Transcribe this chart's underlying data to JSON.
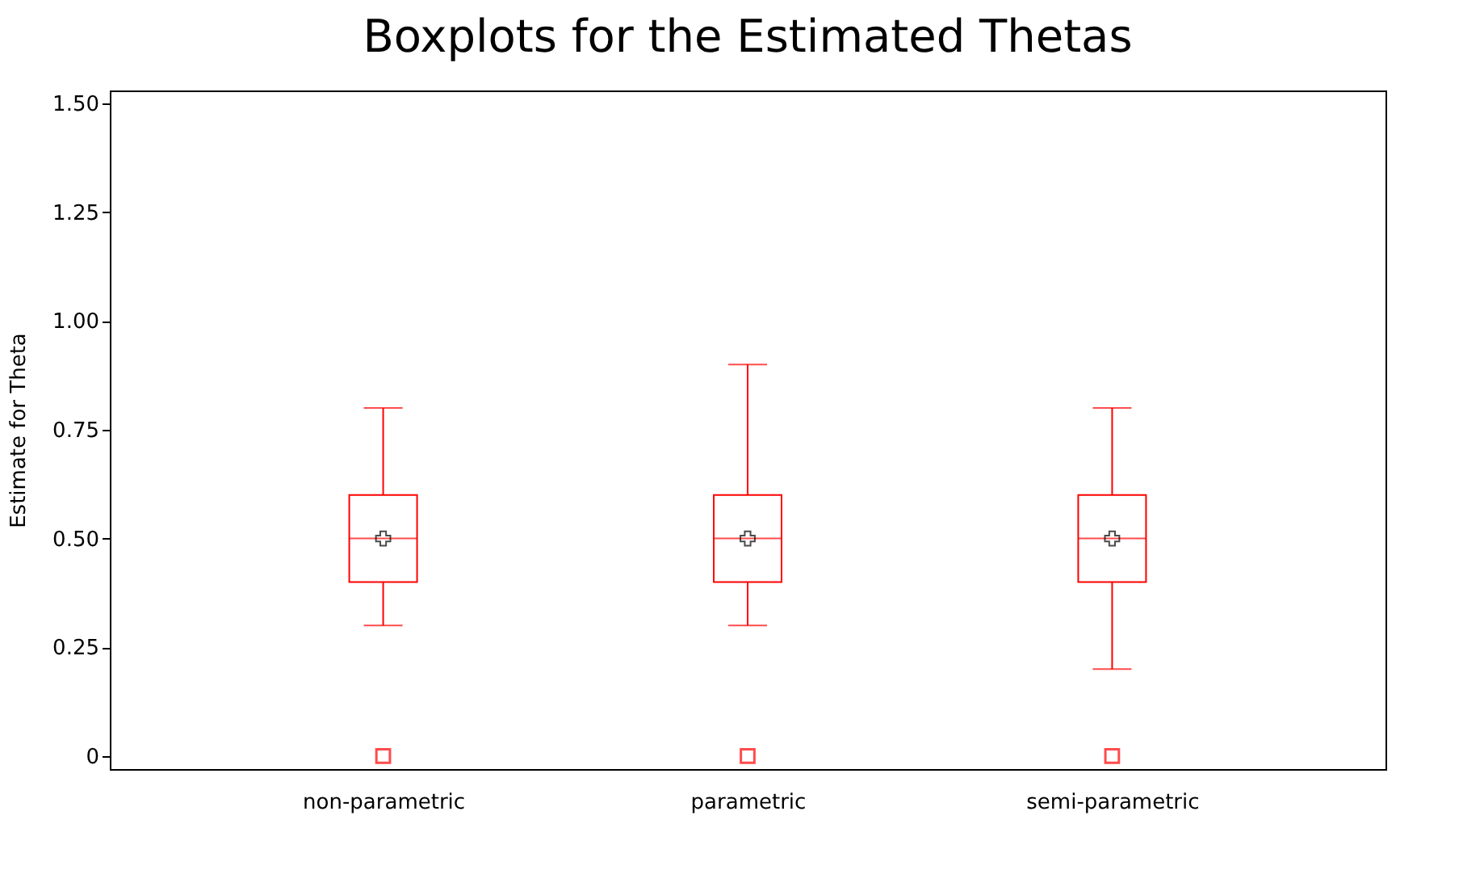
{
  "chart_data": {
    "type": "box",
    "title": "Boxplots for the Estimated Thetas",
    "ylabel": "Estimate for Theta",
    "categories": [
      "non-parametric",
      "parametric",
      "semi-parametric"
    ],
    "series": [
      {
        "color": "#ff0000",
        "boxes": [
          {
            "low": 0.3,
            "q1": 0.4,
            "median": 0.5,
            "q3": 0.6,
            "high": 0.8,
            "mean": 0.5,
            "outliers": [
              0
            ]
          },
          {
            "low": 0.3,
            "q1": 0.4,
            "median": 0.5,
            "q3": 0.6,
            "high": 0.9,
            "mean": 0.5,
            "outliers": [
              0
            ]
          },
          {
            "low": 0.2,
            "q1": 0.4,
            "median": 0.5,
            "q3": 0.6,
            "high": 0.8,
            "mean": 0.5,
            "outliers": [
              0
            ]
          }
        ]
      }
    ],
    "ylim": [
      -0.03,
      1.53
    ],
    "yticks": [
      0,
      {
        "value": 0.25,
        "label": "0.25"
      },
      {
        "value": 0.5,
        "label": "0.50"
      },
      {
        "value": 0.75,
        "label": "0.75"
      },
      {
        "value": 1.0,
        "label": "1.00"
      },
      {
        "value": 1.25,
        "label": "1.25"
      },
      {
        "value": 1.5,
        "label": "1.50"
      }
    ],
    "marker": "square",
    "grid": false
  }
}
